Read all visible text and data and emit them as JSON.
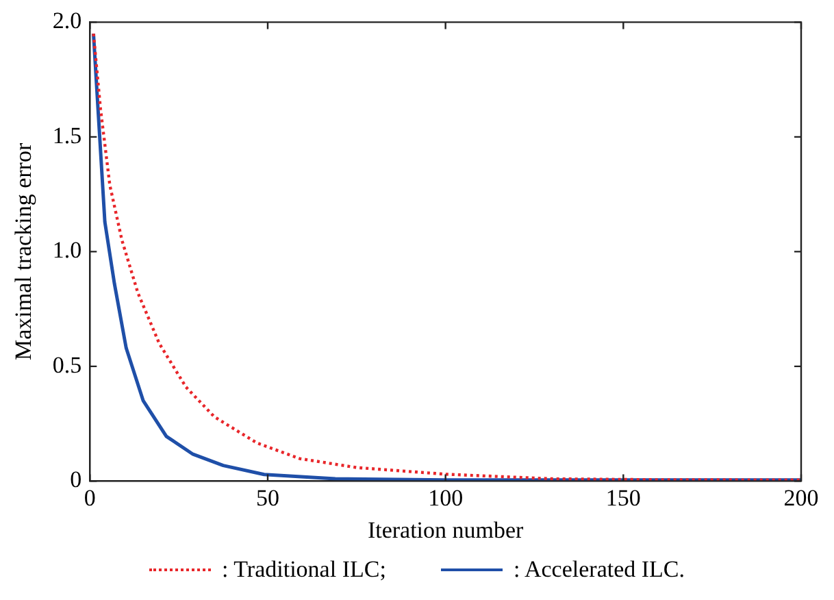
{
  "chart_data": {
    "type": "line",
    "xlabel": "Iteration number",
    "ylabel": "Maximal tracking error",
    "xlim": [
      0,
      200
    ],
    "xticks": [
      0,
      50,
      100,
      150,
      200
    ],
    "ylim": [
      0,
      2
    ],
    "yticks": [
      0,
      {
        "value": 0.5,
        "label": "0.5"
      },
      {
        "value": 1,
        "label": "1.0"
      },
      {
        "value": 1.5,
        "label": "1.5"
      },
      {
        "value": 2,
        "label": "2.0"
      }
    ],
    "legend": "bottom",
    "marker": "none",
    "series": [
      {
        "name": ": Traditional ILC;",
        "color": "#e8262a",
        "line_style": "dotted",
        "x": [
          1,
          3,
          5.6,
          9,
          13.5,
          19.5,
          27,
          35,
          47,
          59,
          75,
          100,
          130,
          160,
          200
        ],
        "values": [
          1.95,
          1.62,
          1.29,
          1.05,
          0.82,
          0.6,
          0.41,
          0.28,
          0.166,
          0.098,
          0.059,
          0.03,
          0.01,
          0.006,
          0.005
        ]
      },
      {
        "name": ": Accelerated ILC.",
        "color": "#1f4fa8",
        "line_style": "solid",
        "x": [
          1,
          4.2,
          6.9,
          10.2,
          15,
          21.5,
          29,
          37.5,
          49,
          69,
          100,
          150,
          200
        ],
        "values": [
          1.95,
          1.13,
          0.86,
          0.58,
          0.35,
          0.195,
          0.117,
          0.068,
          0.029,
          0.01,
          0.005,
          0.005,
          0.005
        ]
      }
    ]
  }
}
